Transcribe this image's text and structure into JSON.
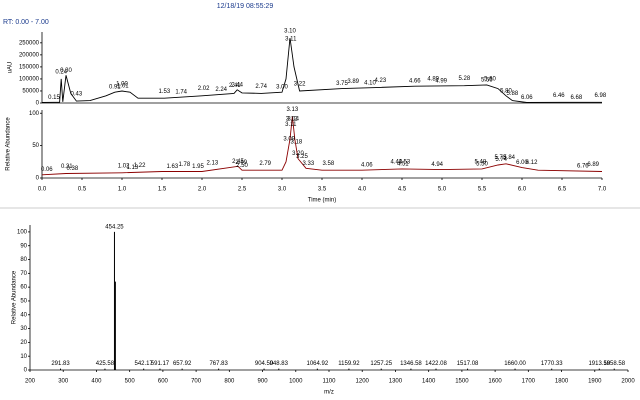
{
  "header": {
    "timestamp": "12/18/19 08:55:29",
    "range": "RT: 0.00 - 7.00"
  },
  "chart_data": [
    {
      "type": "line",
      "ylabel": "uAU",
      "color": "#000000",
      "x": [
        0,
        0.15,
        0.22,
        0.24,
        0.26,
        0.3,
        0.36,
        0.43,
        0.6,
        0.8,
        0.91,
        1.0,
        1.1,
        1.2,
        1.53,
        2.0,
        2.4,
        2.44,
        2.5,
        2.74,
        3.0,
        3.05,
        3.1,
        3.15,
        3.22,
        3.75,
        4.23,
        4.66,
        5.28,
        5.56,
        5.7,
        5.8,
        5.88,
        6.06,
        6.5,
        7.0
      ],
      "values": [
        2000,
        3000,
        3000,
        100000,
        5000,
        115000,
        40000,
        8000,
        10000,
        30000,
        45000,
        50000,
        45000,
        20000,
        20000,
        30000,
        40000,
        55000,
        42000,
        40000,
        45000,
        100000,
        270000,
        150000,
        50000,
        60000,
        65000,
        70000,
        72000,
        75000,
        60000,
        30000,
        10000,
        2000,
        3000,
        3000
      ],
      "peak_x": [
        0.15,
        0.24,
        0.3,
        0.43,
        0.91,
        1.0,
        1.01,
        1.53,
        1.74,
        2.02,
        2.24,
        2.41,
        2.44,
        2.74,
        3.0,
        3.1,
        3.11,
        3.22,
        3.75,
        3.89,
        4.1,
        4.23,
        4.66,
        4.89,
        4.99,
        5.28,
        5.56,
        5.6,
        5.8,
        5.88,
        6.06,
        6.46,
        6.68,
        6.98
      ],
      "peak_labels": [
        "0.15",
        "0.24",
        "0.30",
        "0.43",
        "0.91",
        "1.00",
        "1.01",
        "1.53",
        "1.74",
        "2.02",
        "2.24",
        "2.41",
        "2.44",
        "2.74",
        "3.00",
        "3.10",
        "3.11",
        "3.22",
        "3.75",
        "3.89",
        "4.10",
        "4.23",
        "4.66",
        "4.89",
        "4.99",
        "5.28",
        "5.56",
        "5.60",
        "5.80",
        "5.88",
        "6.06",
        "6.46",
        "6.68",
        "6.98"
      ],
      "xlim": [
        0,
        7
      ],
      "ylim": [
        0,
        295000
      ],
      "yticks": [
        0,
        50000,
        100000,
        150000,
        200000,
        250000
      ]
    },
    {
      "type": "line",
      "ylabel": "Relative Abundance",
      "xlabel": "Time (min)",
      "color": "#8b0000",
      "x": [
        0,
        0.3,
        1.0,
        1.5,
        2.0,
        2.45,
        2.5,
        3.0,
        3.05,
        3.1,
        3.13,
        3.16,
        3.2,
        3.3,
        3.5,
        4.0,
        4.5,
        5.0,
        5.5,
        5.7,
        5.8,
        6.0,
        6.2,
        7.0
      ],
      "values": [
        5,
        7,
        8,
        10,
        10,
        18,
        12,
        12,
        25,
        60,
        95,
        60,
        30,
        15,
        12,
        12,
        14,
        13,
        14,
        20,
        22,
        16,
        12,
        10
      ],
      "peak_x": [
        0.06,
        0.31,
        0.38,
        1.02,
        1.13,
        1.22,
        1.63,
        1.78,
        1.95,
        2.13,
        2.45,
        2.49,
        2.5,
        2.79,
        3.09,
        3.11,
        3.12,
        3.13,
        3.14,
        3.18,
        3.2,
        3.25,
        3.33,
        3.58,
        4.06,
        4.43,
        4.51,
        4.53,
        4.94,
        5.48,
        5.5,
        5.73,
        5.74,
        5.84,
        6.0,
        6.12,
        6.76,
        6.89
      ],
      "peak_labels": [
        "0.06",
        "0.31",
        "0.38",
        "1.02",
        "1.13",
        "1.22",
        "1.63",
        "1.78",
        "1.95",
        "2.13",
        "2.45",
        "2.49",
        "2.50",
        "2.79",
        "3.09",
        "3.11",
        "3.12",
        "3.13",
        "3.14",
        "3.18",
        "3.20",
        "3.25",
        "3.33",
        "3.58",
        "4.06",
        "4.43",
        "4.51",
        "4.53",
        "4.94",
        "5.48",
        "5.50",
        "5.73",
        "5.74",
        "5.84",
        "6.00",
        "6.12",
        "6.76",
        "6.89"
      ],
      "xlim": [
        0,
        7
      ],
      "ylim": [
        0,
        105
      ],
      "yticks": [
        0,
        50,
        100
      ],
      "xticks": [
        {
          "value": 0,
          "label": "0.0"
        },
        {
          "value": 0.5,
          "label": "0.5"
        },
        {
          "value": 1,
          "label": "1.0"
        },
        {
          "value": 1.5,
          "label": "1.5"
        },
        {
          "value": 2,
          "label": "2.0"
        },
        {
          "value": 2.5,
          "label": "2.5"
        },
        {
          "value": 3,
          "label": "3.0"
        },
        {
          "value": 3.5,
          "label": "3.5"
        },
        {
          "value": 4,
          "label": "4.0"
        },
        {
          "value": 4.5,
          "label": "4.5"
        },
        {
          "value": 5,
          "label": "5.0"
        },
        {
          "value": 5.5,
          "label": "5.5"
        },
        {
          "value": 6,
          "label": "6.0"
        },
        {
          "value": 6.5,
          "label": "6.5"
        },
        {
          "value": 7,
          "label": "7.0"
        }
      ]
    },
    {
      "type": "stick",
      "ylabel": "Relative Abundance",
      "xlabel": "m/z",
      "color": "#000000",
      "x": [
        291.83,
        425.58,
        454.25,
        457,
        542.17,
        591.17,
        657.92,
        767.83,
        904.5,
        948.83,
        1064.92,
        1159.92,
        1257.25,
        1346.58,
        1422.08,
        1517.08,
        1660,
        1770.33,
        1913.58,
        1958.58
      ],
      "values": [
        1,
        1,
        100,
        64,
        1,
        1,
        1,
        1,
        1,
        1,
        1,
        1,
        1,
        1,
        1,
        1,
        1,
        1,
        1,
        1
      ],
      "peak_labels": [
        "291.83",
        "425.58",
        "454.25",
        null,
        "542.17",
        "591.17",
        "657.92",
        "767.83",
        "904.50",
        "948.83",
        "1064.92",
        "1159.92",
        "1257.25",
        "1346.58",
        "1422.08",
        "1517.08",
        "1660.00",
        "1770.33",
        "1913.58",
        "1958.58"
      ],
      "xlim": [
        200,
        2000
      ],
      "ylim": [
        0,
        105
      ],
      "yticks": [
        0,
        10,
        20,
        30,
        40,
        50,
        60,
        70,
        80,
        90,
        100
      ],
      "xticks": [
        200,
        300,
        400,
        500,
        600,
        700,
        800,
        900,
        1000,
        1100,
        1200,
        1300,
        1400,
        1500,
        1600,
        1700,
        1800,
        1900,
        2000
      ]
    }
  ]
}
